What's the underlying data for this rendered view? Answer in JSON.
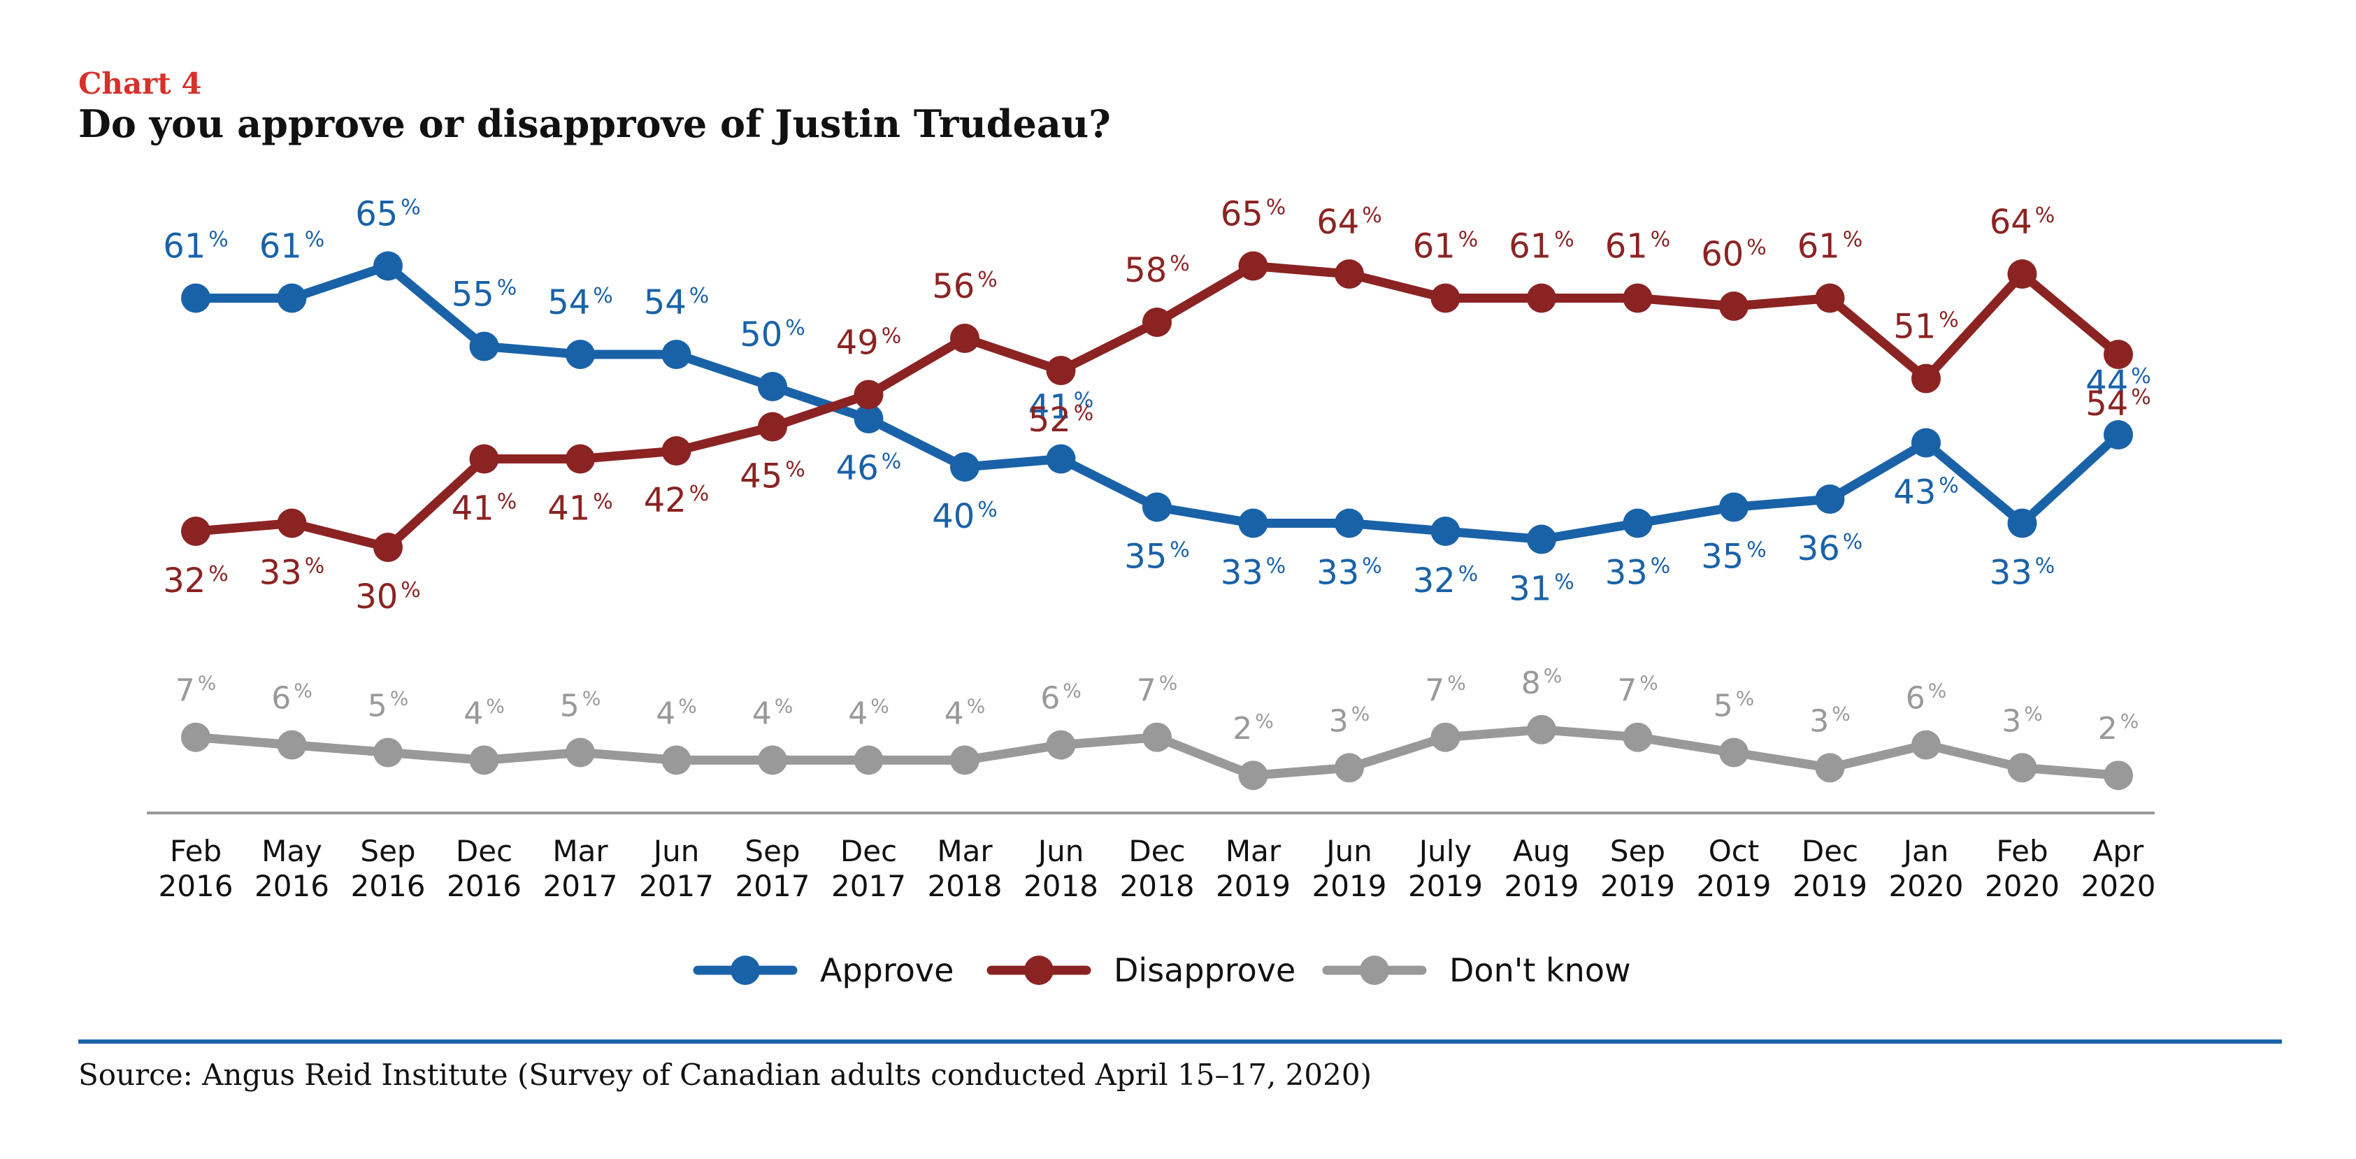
{
  "header": {
    "kicker": "Chart 4",
    "title": "Do you approve or disapprove of Justin Trudeau?"
  },
  "source": "Source: Angus Reid Institute (Survey of Canadian adults conducted April 15–17, 2020)",
  "colors": {
    "approve": "#1a62a8",
    "disapprove": "#8b2323",
    "dont_know": "#999999",
    "kicker": "#d7312b",
    "rule": "#1a62a8",
    "axis": "#999999",
    "text": "#111111"
  },
  "chart_data": {
    "type": "line",
    "title": "Do you approve or disapprove of Justin Trudeau?",
    "categories": [
      [
        "Feb",
        "2016"
      ],
      [
        "May",
        "2016"
      ],
      [
        "Sep",
        "2016"
      ],
      [
        "Dec",
        "2016"
      ],
      [
        "Mar",
        "2017"
      ],
      [
        "Jun",
        "2017"
      ],
      [
        "Sep",
        "2017"
      ],
      [
        "Dec",
        "2017"
      ],
      [
        "Mar",
        "2018"
      ],
      [
        "Jun",
        "2018"
      ],
      [
        "Dec",
        "2018"
      ],
      [
        "Mar",
        "2019"
      ],
      [
        "Jun",
        "2019"
      ],
      [
        "July",
        "2019"
      ],
      [
        "Aug",
        "2019"
      ],
      [
        "Sep",
        "2019"
      ],
      [
        "Oct",
        "2019"
      ],
      [
        "Dec",
        "2019"
      ],
      [
        "Jan",
        "2020"
      ],
      [
        "Feb",
        "2020"
      ],
      [
        "Apr",
        "2020"
      ]
    ],
    "unit": "%",
    "series": [
      {
        "name": "Approve",
        "color": "#1a62a8",
        "values": [
          61,
          61,
          65,
          55,
          54,
          54,
          50,
          46,
          40,
          41,
          35,
          33,
          33,
          32,
          31,
          33,
          35,
          36,
          43,
          33,
          44
        ],
        "label_positions": [
          "above",
          "above",
          "above",
          "above",
          "above",
          "above",
          "above",
          "below",
          "below",
          "above",
          "below",
          "below",
          "below",
          "below",
          "below",
          "below",
          "below",
          "below",
          "below",
          "below",
          "above"
        ]
      },
      {
        "name": "Disapprove",
        "color": "#8b2323",
        "values": [
          32,
          33,
          30,
          41,
          41,
          42,
          45,
          49,
          56,
          52,
          58,
          65,
          64,
          61,
          61,
          61,
          60,
          61,
          51,
          64,
          54
        ],
        "label_positions": [
          "below",
          "below",
          "below",
          "below",
          "below",
          "below",
          "below",
          "above",
          "above",
          "below",
          "above",
          "above",
          "above",
          "above",
          "above",
          "above",
          "above",
          "above",
          "above",
          "above",
          "below"
        ]
      },
      {
        "name": "Don't know",
        "color": "#999999",
        "values": [
          7,
          6,
          5,
          4,
          5,
          4,
          4,
          4,
          4,
          6,
          7,
          2,
          3,
          7,
          8,
          7,
          5,
          3,
          6,
          3,
          2
        ],
        "label_positions": [
          "above",
          "above",
          "above",
          "above",
          "above",
          "above",
          "above",
          "above",
          "above",
          "above",
          "above",
          "above",
          "above",
          "above",
          "above",
          "above",
          "above",
          "above",
          "above",
          "above",
          "above"
        ]
      }
    ],
    "legend": {
      "placement": "bottom-center",
      "items": [
        "Approve",
        "Disapprove",
        "Don't know"
      ]
    },
    "grid": false
  }
}
